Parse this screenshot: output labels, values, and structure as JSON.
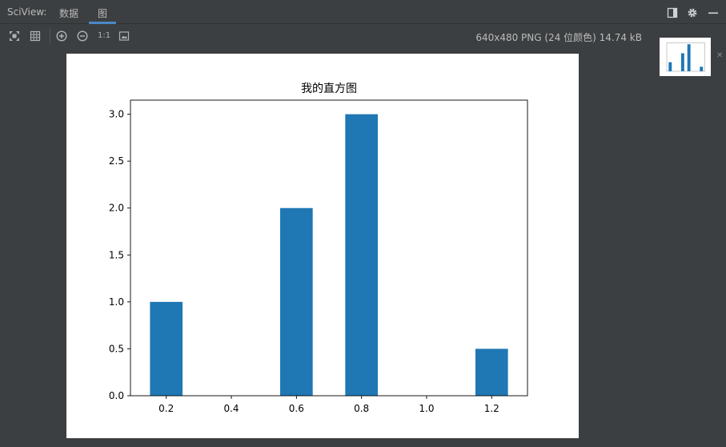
{
  "app": {
    "tool_window_title": "SciView:",
    "tabs": [
      {
        "label": "数据",
        "active": false
      },
      {
        "label": "图",
        "active": true
      }
    ],
    "toolbar": {
      "one_to_one_label": "1:1"
    },
    "file_info": "640x480 PNG (24 位颜色) 14.74 kB",
    "icons": {
      "hide_sidebar": "panel-icon",
      "settings": "gear-icon",
      "minimize": "minimize-icon",
      "fit": "fit-icon",
      "grid": "grid-icon",
      "zoom_in": "zoom-in-icon",
      "zoom_out": "zoom-out-icon",
      "actual_size": "actual-size-icon",
      "background": "background-icon",
      "close_thumbnail": "close-icon"
    },
    "colors": {
      "background": "#3c3f41",
      "tab_underline": "#4a88c7",
      "bar": "#1f77b4"
    }
  },
  "chart_data": {
    "type": "bar",
    "title": "我的直方图",
    "xlabel": "",
    "ylabel": "",
    "x": [
      0.2,
      0.6,
      0.8,
      1.2
    ],
    "values": [
      1.0,
      2.0,
      3.0,
      0.5
    ],
    "bar_width": 0.1,
    "xlim": [
      0.09,
      1.31
    ],
    "ylim": [
      0,
      3.15
    ],
    "xticks": [
      0.2,
      0.4,
      0.6,
      0.8,
      1.0,
      1.2
    ],
    "xtick_labels": [
      "0.2",
      "0.4",
      "0.6",
      "0.8",
      "1.0",
      "1.2"
    ],
    "yticks": [
      0.0,
      0.5,
      1.0,
      1.5,
      2.0,
      2.5,
      3.0
    ],
    "ytick_labels": [
      "0.0",
      "0.5",
      "1.0",
      "1.5",
      "2.0",
      "2.5",
      "3.0"
    ],
    "grid": false,
    "legend": "none",
    "color": "#1f77b4"
  }
}
